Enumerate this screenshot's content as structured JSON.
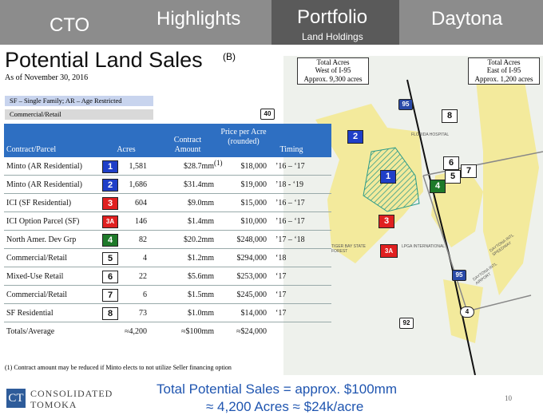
{
  "nav": {
    "tabs": [
      "CTO",
      "Highlights",
      "Portfolio",
      "Daytona"
    ],
    "active_subtitle": "Land Holdings"
  },
  "header": {
    "title": "Potential Land Sales",
    "title_note": "(B)",
    "date": "As of November 30, 2016"
  },
  "legend": [
    "SF – Single Family; AR – Age Restricted",
    "Commercial/Retail"
  ],
  "table": {
    "columns": [
      "Contract/Parcel",
      "Acres",
      "Contract Amount",
      "Price per Acre (rounded)",
      "Timing"
    ],
    "rows": [
      {
        "parcel": "Minto (AR Residential)",
        "badge": "1",
        "color": "#1f3fc8",
        "acres": "1,581",
        "amount": "$28.7mm",
        "note": "(1)",
        "price": "$18,000",
        "timing": "’16 – ‘17"
      },
      {
        "parcel": "Minto (AR Residential)",
        "badge": "2",
        "color": "#1f3fc8",
        "acres": "1,686",
        "amount": "$31.4mm",
        "price": "$19,000",
        "timing": "’18 - ‘19"
      },
      {
        "parcel": "ICI (SF Residential)",
        "badge": "3",
        "color": "#e02020",
        "acres": "604",
        "amount": "$9.0mm",
        "price": "$15,000",
        "timing": "’16 – ‘17"
      },
      {
        "parcel": "ICI Option Parcel (SF)",
        "badge": "3A",
        "color": "#e02020",
        "acres": "146",
        "amount": "$1.4mm",
        "price": "$10,000",
        "timing": "’16 – ‘17"
      },
      {
        "parcel": "North Amer. Dev Grp",
        "badge": "4",
        "color": "#1e7a2a",
        "acres": "82",
        "amount": "$20.2mm",
        "price": "$248,000",
        "timing": "’17 – ‘18"
      },
      {
        "parcel": "Commercial/Retail",
        "badge": "5",
        "color": "#ffffff",
        "acres": "4",
        "amount": "$1.2mm",
        "price": "$294,000",
        "timing": "‘18"
      },
      {
        "parcel": "Mixed-Use Retail",
        "badge": "6",
        "color": "#ffffff",
        "acres": "22",
        "amount": "$5.6mm",
        "price": "$253,000",
        "timing": "‘17"
      },
      {
        "parcel": "Commercial/Retail",
        "badge": "7",
        "color": "#ffffff",
        "acres": "6",
        "amount": "$1.5mm",
        "price": "$245,000",
        "timing": "‘17"
      },
      {
        "parcel": "SF Residential",
        "badge": "8",
        "color": "#ffffff",
        "acres": "73",
        "amount": "$1.0mm",
        "price": "$14,000",
        "timing": "‘17"
      }
    ],
    "totals": {
      "parcel": "Totals/Average",
      "acres": "≈4,200",
      "amount": "≈$100mm",
      "price": "≈$24,000"
    }
  },
  "footnote": "(1)  Contract amount may be reduced if Minto elects to not utilize Seller financing option",
  "map": {
    "west_box": [
      "Total Acres",
      "West of I-95",
      "Approx. 9,300 acres"
    ],
    "east_box": [
      "Total Acres",
      "East of I-95",
      "Approx. 1,200 acres"
    ],
    "parcels": [
      {
        "label": "2",
        "color": "#1f3fc8"
      },
      {
        "label": "1",
        "color": "#1f3fc8"
      },
      {
        "label": "3",
        "color": "#e02020"
      },
      {
        "label": "3A",
        "color": "#e02020"
      },
      {
        "label": "4",
        "color": "#1e7a2a"
      },
      {
        "label": "5",
        "color": "#ffffff"
      },
      {
        "label": "6",
        "color": "#ffffff"
      },
      {
        "label": "7",
        "color": "#ffffff"
      },
      {
        "label": "8",
        "color": "#ffffff"
      }
    ],
    "roads": [
      "40",
      "95",
      "95",
      "4",
      "92"
    ],
    "places": [
      "FLORIDA HOSPITAL",
      "TIGER BAY STATE FOREST",
      "LPGA INTERNATIONAL",
      "DAYTONA INTL SPEEDWAY",
      "DAYTONA INTL AIRPORT"
    ]
  },
  "footer": {
    "logo_mark": "CT",
    "logo_line1": "CONSOLIDATED",
    "logo_line2": "TOMOKA",
    "summary_line1": "Total Potential Sales = approx. $100mm",
    "summary_line2": "≈ 4,200 Acres ≈ $24k/acre",
    "page": "10"
  }
}
